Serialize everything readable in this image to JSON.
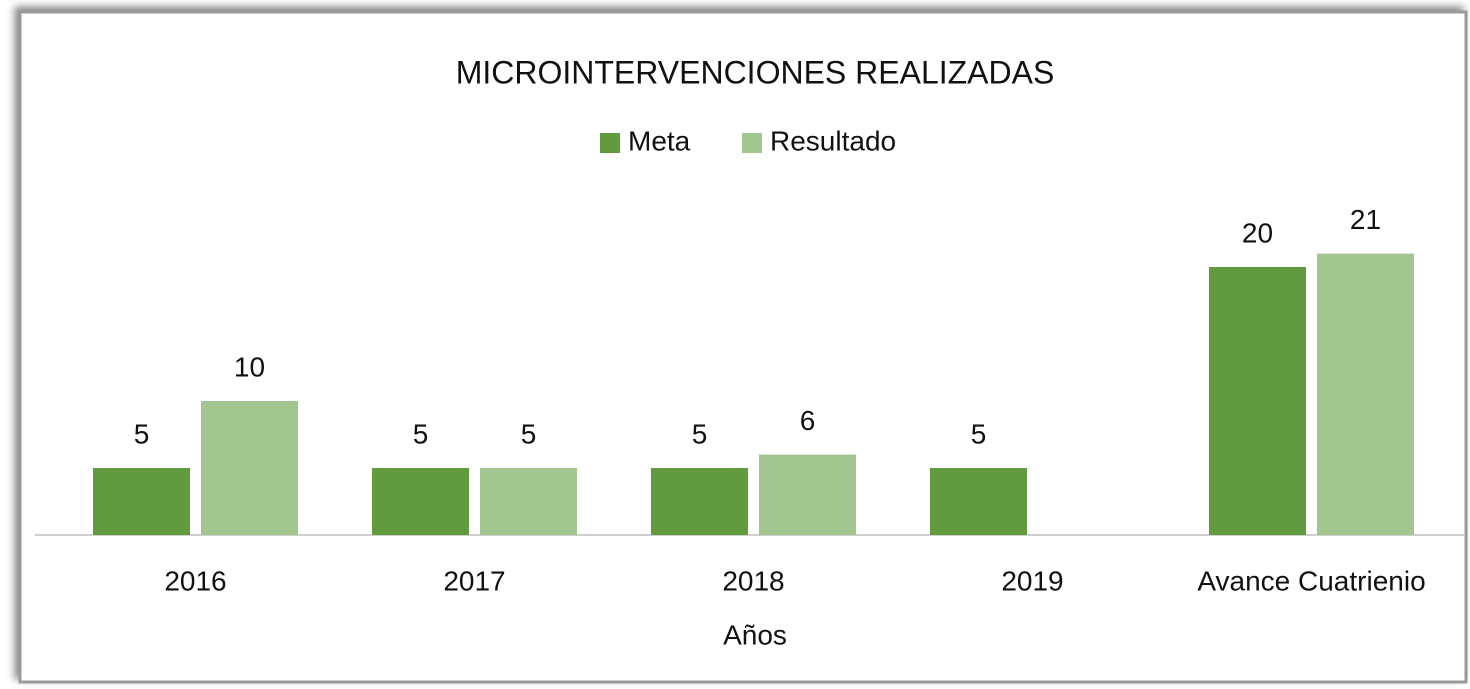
{
  "chart_data": {
    "type": "bar",
    "title": "MICROINTERVENCIONES REALIZADAS",
    "x_label": "Años",
    "categories": [
      "2016",
      "2017",
      "2018",
      "2019",
      "Avance Cuatrienio"
    ],
    "series": [
      {
        "name": "Meta",
        "color": "#629b3f",
        "values": [
          5,
          5,
          5,
          5,
          20
        ]
      },
      {
        "name": "Resultado",
        "color": "#a3c690",
        "values": [
          10,
          5,
          6,
          null,
          21
        ]
      }
    ],
    "legend": "top"
  }
}
